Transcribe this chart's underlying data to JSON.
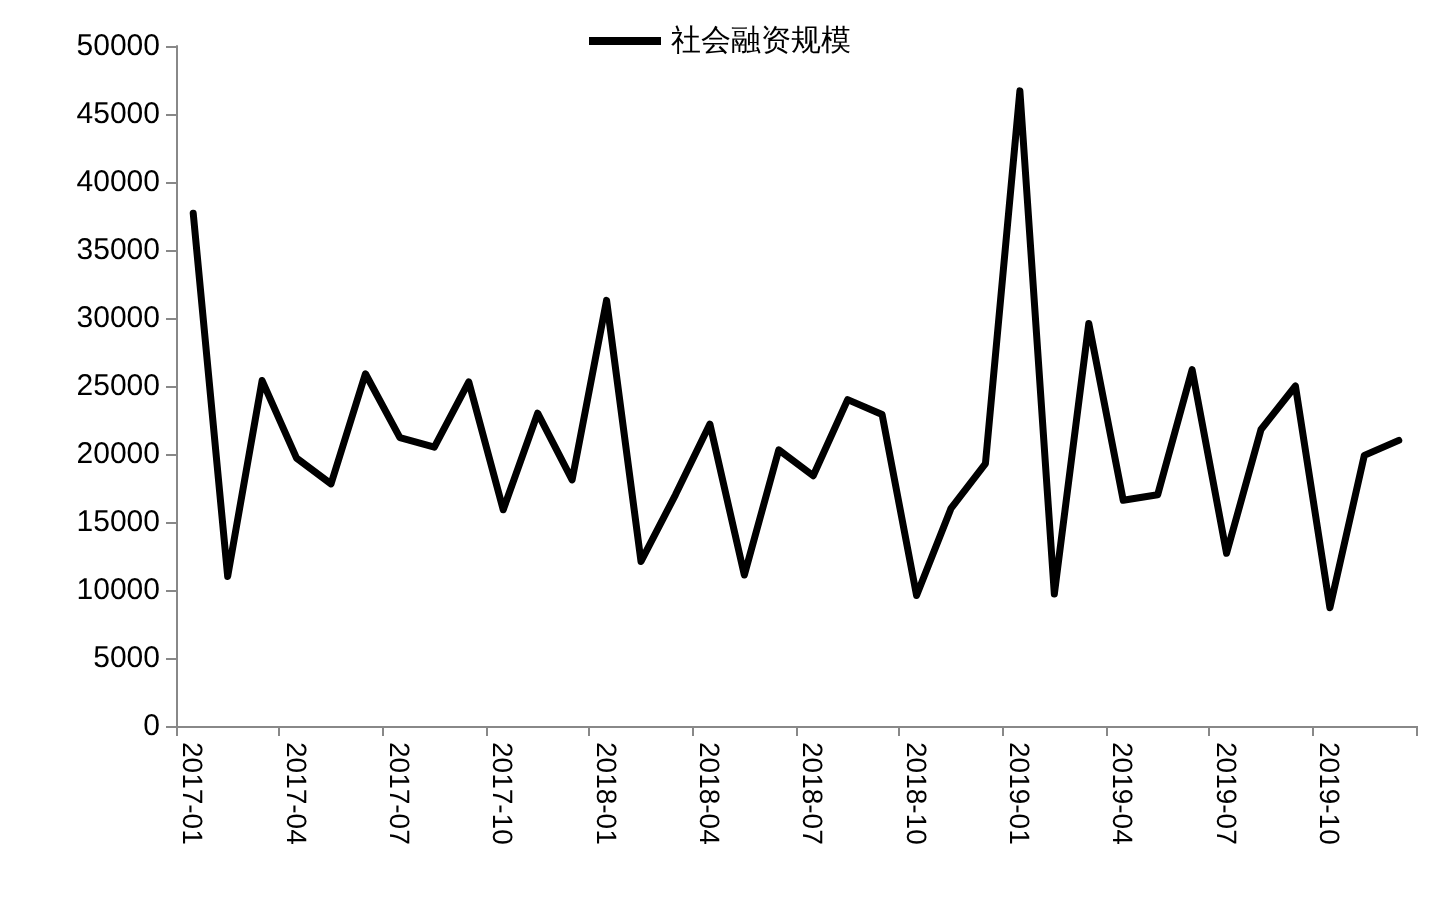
{
  "chart_data": {
    "type": "line",
    "categories": [
      "2017-01",
      null,
      null,
      "2017-04",
      null,
      null,
      "2017-07",
      null,
      null,
      "2017-10",
      null,
      null,
      "2018-01",
      null,
      null,
      "2018-04",
      null,
      null,
      "2018-07",
      null,
      null,
      "2018-10",
      null,
      null,
      "2019-01",
      null,
      null,
      "2019-04",
      null,
      null,
      "2019-07",
      null,
      null,
      "2019-10",
      null,
      null
    ],
    "series": [
      {
        "name": "社会融资规模",
        "color": "#000000",
        "values": [
          37700,
          11000,
          25400,
          19700,
          17800,
          25900,
          21200,
          20500,
          25300,
          15900,
          23000,
          18100,
          31300,
          12100,
          17000,
          22200,
          11100,
          20300,
          18400,
          24000,
          22900,
          9600,
          16000,
          19300,
          46700,
          9700,
          29600,
          16600,
          17000,
          26200,
          12700,
          21800,
          25000,
          8700,
          19900,
          21000
        ]
      }
    ],
    "ylim": [
      0,
      50000
    ],
    "yticks": [
      0,
      5000,
      10000,
      15000,
      20000,
      25000,
      30000,
      35000,
      40000,
      45000,
      50000
    ],
    "grid": false,
    "legend": "top",
    "marker": "none",
    "line_style": "solid"
  }
}
